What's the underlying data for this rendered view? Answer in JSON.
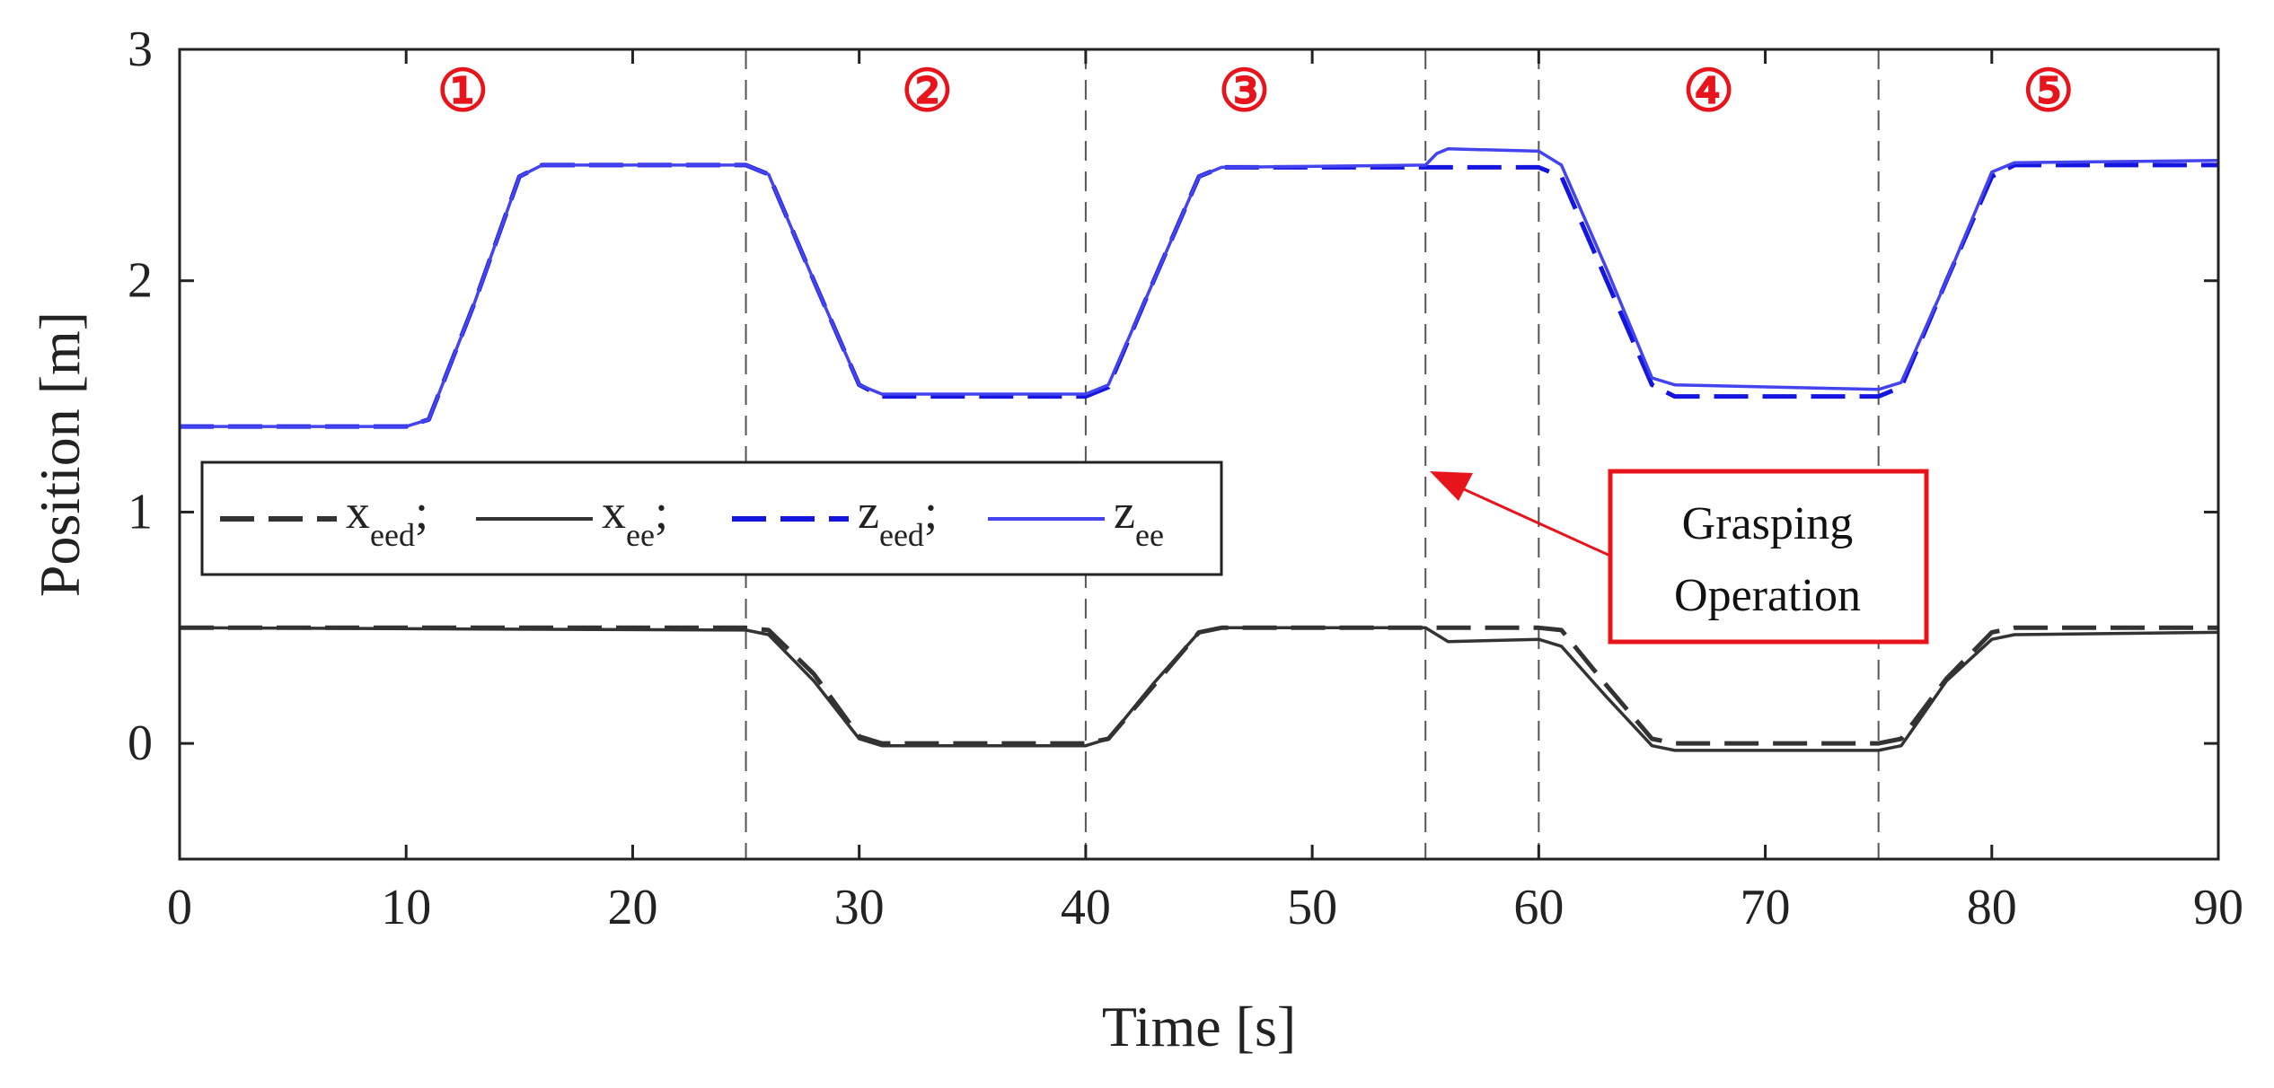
{
  "chart_data": {
    "type": "line",
    "title": "",
    "xlabel": "Time [s]",
    "ylabel": "Position [m]",
    "xlim": [
      0,
      90
    ],
    "ylim": [
      -0.5,
      3
    ],
    "xticks": [
      0,
      10,
      20,
      30,
      40,
      50,
      60,
      70,
      80,
      90
    ],
    "yticks": [
      0,
      1,
      2,
      3
    ],
    "phase_boundaries": [
      25,
      40,
      55,
      60,
      75
    ],
    "phase_labels": [
      {
        "text": "①",
        "x": 12.5
      },
      {
        "text": "②",
        "x": 33
      },
      {
        "text": "③",
        "x": 47
      },
      {
        "text": "④",
        "x": 67.5
      },
      {
        "text": "⑤",
        "x": 82.5
      }
    ],
    "series": [
      {
        "name": "x_eed",
        "base": "x",
        "sub": "eed",
        "color": "#333333",
        "dash": "dashed",
        "points": [
          [
            0,
            0.5
          ],
          [
            25,
            0.5
          ],
          [
            26,
            0.49
          ],
          [
            28,
            0.3
          ],
          [
            30,
            0.03
          ],
          [
            31,
            0
          ],
          [
            40,
            0
          ],
          [
            41,
            0.02
          ],
          [
            43,
            0.25
          ],
          [
            45,
            0.48
          ],
          [
            46,
            0.5
          ],
          [
            60,
            0.5
          ],
          [
            61,
            0.49
          ],
          [
            63,
            0.25
          ],
          [
            65,
            0.02
          ],
          [
            66,
            0
          ],
          [
            75,
            0
          ],
          [
            76,
            0.02
          ],
          [
            78,
            0.28
          ],
          [
            80,
            0.48
          ],
          [
            81,
            0.5
          ],
          [
            90,
            0.5
          ]
        ]
      },
      {
        "name": "x_ee",
        "base": "x",
        "sub": "ee",
        "color": "#333333",
        "dash": "solid",
        "points": [
          [
            0,
            0.5
          ],
          [
            25,
            0.49
          ],
          [
            26,
            0.47
          ],
          [
            28,
            0.27
          ],
          [
            30,
            0.02
          ],
          [
            31,
            -0.01
          ],
          [
            40,
            -0.01
          ],
          [
            41,
            0.02
          ],
          [
            43,
            0.26
          ],
          [
            45,
            0.48
          ],
          [
            46,
            0.5
          ],
          [
            55,
            0.5
          ],
          [
            55.5,
            0.47
          ],
          [
            56,
            0.44
          ],
          [
            60,
            0.45
          ],
          [
            61,
            0.42
          ],
          [
            63,
            0.2
          ],
          [
            65,
            -0.01
          ],
          [
            66,
            -0.03
          ],
          [
            75,
            -0.03
          ],
          [
            76,
            -0.01
          ],
          [
            78,
            0.27
          ],
          [
            80,
            0.45
          ],
          [
            81,
            0.47
          ],
          [
            90,
            0.48
          ]
        ]
      },
      {
        "name": "z_eed",
        "base": "z",
        "sub": "eed",
        "color": "#1515e0",
        "dash": "dashed",
        "points": [
          [
            0,
            1.37
          ],
          [
            10,
            1.37
          ],
          [
            11,
            1.4
          ],
          [
            13,
            1.9
          ],
          [
            15,
            2.45
          ],
          [
            16,
            2.5
          ],
          [
            25,
            2.5
          ],
          [
            26,
            2.46
          ],
          [
            28,
            2.0
          ],
          [
            30,
            1.55
          ],
          [
            31,
            1.5
          ],
          [
            40,
            1.5
          ],
          [
            41,
            1.54
          ],
          [
            43,
            2.0
          ],
          [
            45,
            2.45
          ],
          [
            46,
            2.49
          ],
          [
            60,
            2.49
          ],
          [
            61,
            2.45
          ],
          [
            63,
            2.0
          ],
          [
            65,
            1.55
          ],
          [
            66,
            1.5
          ],
          [
            75,
            1.5
          ],
          [
            76,
            1.54
          ],
          [
            78,
            2.0
          ],
          [
            80,
            2.45
          ],
          [
            81,
            2.5
          ],
          [
            90,
            2.5
          ]
        ]
      },
      {
        "name": "z_ee",
        "base": "z",
        "sub": "ee",
        "color": "#4444ee",
        "dash": "solid",
        "points": [
          [
            0,
            1.37
          ],
          [
            10,
            1.37
          ],
          [
            11,
            1.4
          ],
          [
            13,
            1.9
          ],
          [
            15,
            2.45
          ],
          [
            16,
            2.5
          ],
          [
            25,
            2.5
          ],
          [
            26,
            2.46
          ],
          [
            28,
            2.0
          ],
          [
            30,
            1.55
          ],
          [
            31,
            1.51
          ],
          [
            40,
            1.51
          ],
          [
            41,
            1.55
          ],
          [
            43,
            2.0
          ],
          [
            45,
            2.45
          ],
          [
            46,
            2.49
          ],
          [
            55,
            2.5
          ],
          [
            55.5,
            2.55
          ],
          [
            56,
            2.57
          ],
          [
            60,
            2.56
          ],
          [
            61,
            2.5
          ],
          [
            63,
            2.05
          ],
          [
            65,
            1.58
          ],
          [
            66,
            1.55
          ],
          [
            75,
            1.53
          ],
          [
            76,
            1.56
          ],
          [
            78,
            2.0
          ],
          [
            80,
            2.47
          ],
          [
            81,
            2.51
          ],
          [
            90,
            2.52
          ]
        ]
      }
    ],
    "annotation": {
      "lines": [
        "Grasping",
        "Operation"
      ],
      "target": [
        55.3,
        1.15
      ],
      "color": "#e8141c"
    }
  }
}
